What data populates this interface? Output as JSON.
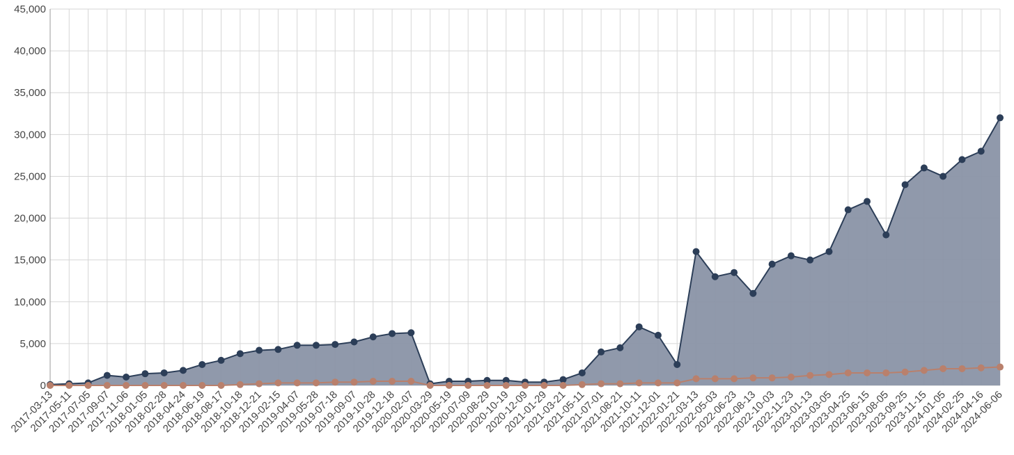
{
  "chart_data": {
    "type": "line",
    "x": [
      "2017-03-13",
      "2017-05-11",
      "2017-07-05",
      "2017-09-07",
      "2017-11-06",
      "2018-01-05",
      "2018-02-28",
      "2018-04-24",
      "2018-06-19",
      "2018-08-17",
      "2018-10-18",
      "2018-12-21",
      "2019-02-15",
      "2019-04-07",
      "2019-05-28",
      "2019-07-18",
      "2019-09-07",
      "2019-10-28",
      "2019-12-18",
      "2020-02-07",
      "2020-03-29",
      "2020-05-19",
      "2020-07-09",
      "2020-08-29",
      "2020-10-19",
      "2020-12-09",
      "2021-01-29",
      "2021-03-21",
      "2021-05-11",
      "2021-07-01",
      "2021-08-21",
      "2021-10-11",
      "2021-12-01",
      "2022-01-21",
      "2022-03-13",
      "2022-05-03",
      "2022-06-23",
      "2022-08-13",
      "2022-10-03",
      "2022-11-23",
      "2023-01-13",
      "2023-03-05",
      "2023-04-25",
      "2023-06-15",
      "2023-08-05",
      "2023-09-25",
      "2023-11-15",
      "2024-01-05",
      "2024-02-25",
      "2024-04-16",
      "2024-06-06"
    ],
    "series": [
      {
        "color": "#2c3e58",
        "fill": "#8a94a6",
        "values": [
          100,
          200,
          300,
          1200,
          1000,
          1400,
          1500,
          1800,
          2500,
          3000,
          3800,
          4200,
          4300,
          4800,
          4800,
          4900,
          5200,
          5800,
          6200,
          6300,
          200,
          500,
          500,
          600,
          600,
          400,
          400,
          700,
          1500,
          4000,
          4500,
          7000,
          6000,
          2500,
          16000,
          13000,
          13500,
          11000,
          14500,
          15500,
          15000,
          16000,
          21000,
          22000,
          18000,
          24000,
          26000,
          25000,
          27000,
          28000,
          32000
        ]
      },
      {
        "color": "#b9806c",
        "values": [
          0,
          0,
          0,
          0,
          0,
          0,
          0,
          0,
          0,
          0,
          100,
          200,
          300,
          300,
          300,
          400,
          400,
          500,
          500,
          500,
          0,
          0,
          0,
          0,
          0,
          0,
          0,
          0,
          100,
          200,
          200,
          300,
          300,
          300,
          800,
          800,
          800,
          900,
          900,
          1000,
          1200,
          1300,
          1500,
          1500,
          1500,
          1600,
          1800,
          2000,
          2000,
          2100,
          2200
        ]
      }
    ],
    "ylim": [
      0,
      45000
    ],
    "yticks": [
      0,
      {
        "value": 5000,
        "label": "5,000"
      },
      {
        "value": 10000,
        "label": "10,000"
      },
      {
        "value": 15000,
        "label": "15,000"
      },
      {
        "value": 20000,
        "label": "20,000"
      },
      {
        "value": 25000,
        "label": "25,000"
      },
      {
        "value": 30000,
        "label": "30,000"
      },
      {
        "value": 35000,
        "label": "35,000"
      },
      {
        "value": 40000,
        "label": "40,000"
      },
      {
        "value": 45000,
        "label": "45,000"
      }
    ],
    "grid": true
  }
}
